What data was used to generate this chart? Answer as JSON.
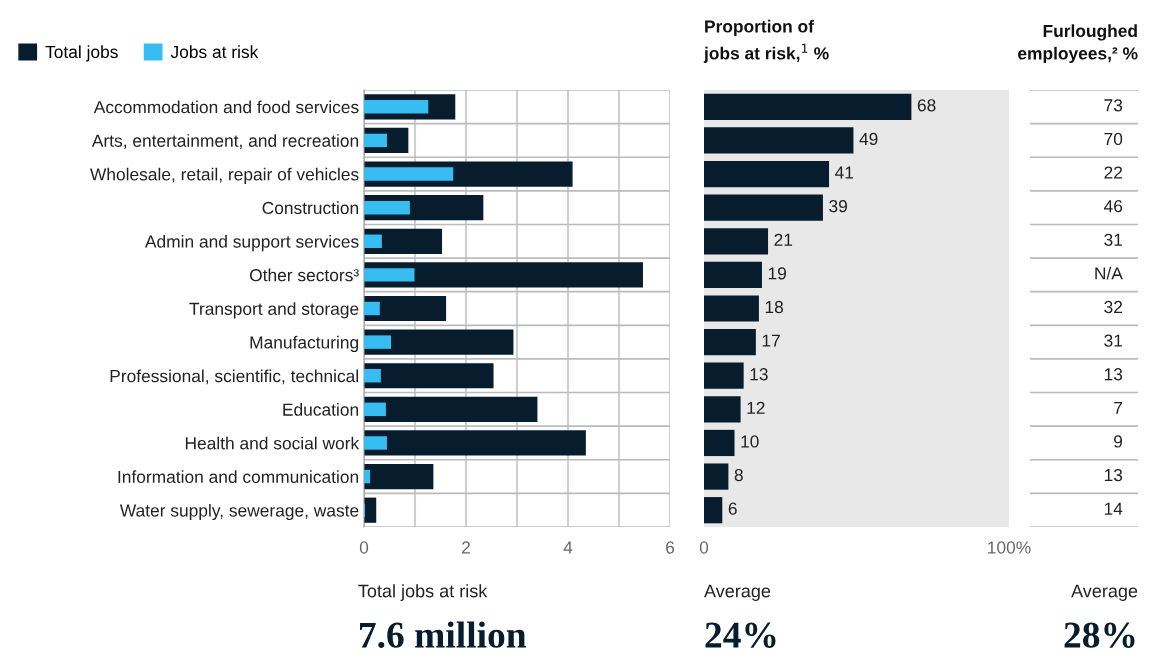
{
  "chart_data": [
    {
      "type": "bar",
      "orientation": "horizontal",
      "categories": [
        "Accommodation and food services",
        "Arts, entertainment, and recreation",
        "Wholesale, retail, repair of vehicles",
        "Construction",
        "Admin and support services",
        "Other sectors³",
        "Transport and storage",
        "Manufacturing",
        "Professional, scientific, technical",
        "Education",
        "Health and social work",
        "Information and communication",
        "Water supply, sewerage, waste"
      ],
      "series": [
        {
          "name": "Total jobs",
          "color": "#071d2e",
          "values": [
            1.79,
            0.87,
            4.09,
            2.34,
            1.53,
            5.47,
            1.61,
            2.93,
            2.54,
            3.4,
            4.35,
            1.36,
            0.24
          ]
        },
        {
          "name": "Jobs at risk",
          "color": "#38bdf2",
          "values": [
            1.26,
            0.45,
            1.75,
            0.9,
            0.35,
            0.99,
            0.31,
            0.53,
            0.33,
            0.43,
            0.45,
            0.12,
            0.02
          ]
        }
      ],
      "xlim": [
        0,
        6
      ],
      "xticks": [
        0,
        {
          "value": 1,
          "label": null
        },
        2,
        {
          "value": 3,
          "label": null
        },
        4,
        {
          "value": 5,
          "label": null
        },
        6
      ],
      "grid": true,
      "legend": "top left",
      "annotations": [
        "Total jobs at risk",
        "7.6 million"
      ]
    },
    {
      "type": "bar",
      "orientation": "horizontal",
      "title": "Proportion of\njobs at risk,$^{1}$ %",
      "series": [
        {
          "color": "#071d2e",
          "values": [
            68,
            49,
            41,
            39,
            21,
            19,
            18,
            17,
            13,
            12,
            10,
            8,
            6
          ]
        }
      ],
      "xlim": [
        0,
        100
      ],
      "xticks": [
        0,
        {
          "value": 100,
          "label": "100%"
        }
      ],
      "data_labels": true,
      "tick_labels": "x",
      "bands": [
        {
          "axis": "x",
          "from": 0,
          "to": 100,
          "color": "#e8e8e8"
        }
      ],
      "annotations": [
        "Average",
        "24%"
      ]
    },
    {
      "type": "other",
      "title": "Furloughed\nemployees,² %",
      "value_labels": [
        "73",
        "70",
        "22",
        "46",
        "31",
        "N/A",
        "32",
        "31",
        "13",
        "7",
        "9",
        "13",
        "14"
      ],
      "annotations": [
        "Average",
        "28%"
      ]
    }
  ]
}
